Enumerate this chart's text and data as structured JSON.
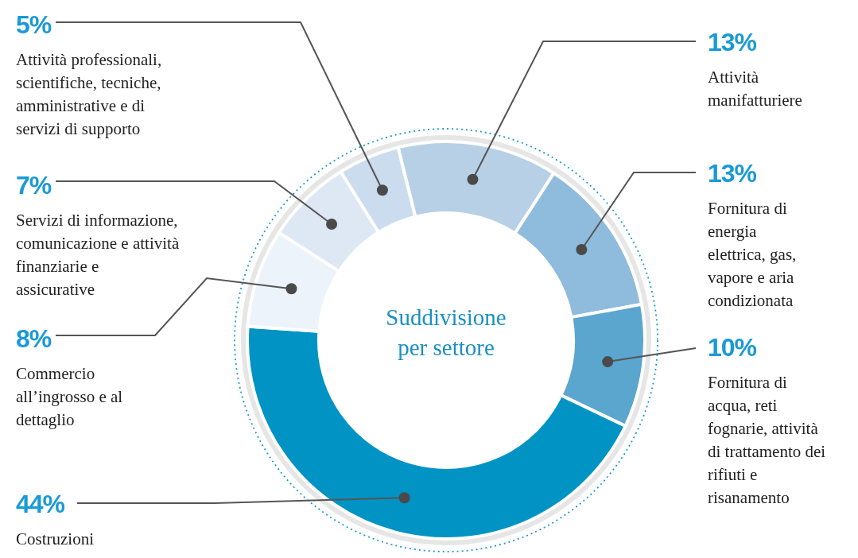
{
  "chart_data": {
    "type": "donut",
    "title": "Suddivisione per settore",
    "categories": [
      "Attività manifatturiere",
      "Fornitura di energia elettrica, gas, vapore e aria condizionata",
      "Fornitura di acqua, reti fognarie, attività di trattamento dei rifiuti e risanamento",
      "Costruzioni",
      "Commercio all’ingrosso e al dettaglio",
      "Servizi di informazione, comunicazione e attività finanziarie e assicurative",
      "Attività professionali, scientifiche, tecniche, amministrative e di servizi di supporto"
    ],
    "values": [
      13,
      13,
      10,
      44,
      8,
      7,
      5
    ],
    "value_labels": [
      "13%",
      "13%",
      "10%",
      "44%",
      "8%",
      "7%",
      "5%"
    ],
    "colors": [
      "#b8d0e6",
      "#8fbbdc",
      "#5ba6cf",
      "#0093c4",
      "#edf3fa",
      "#dde8f4",
      "#cbdcee"
    ]
  }
}
